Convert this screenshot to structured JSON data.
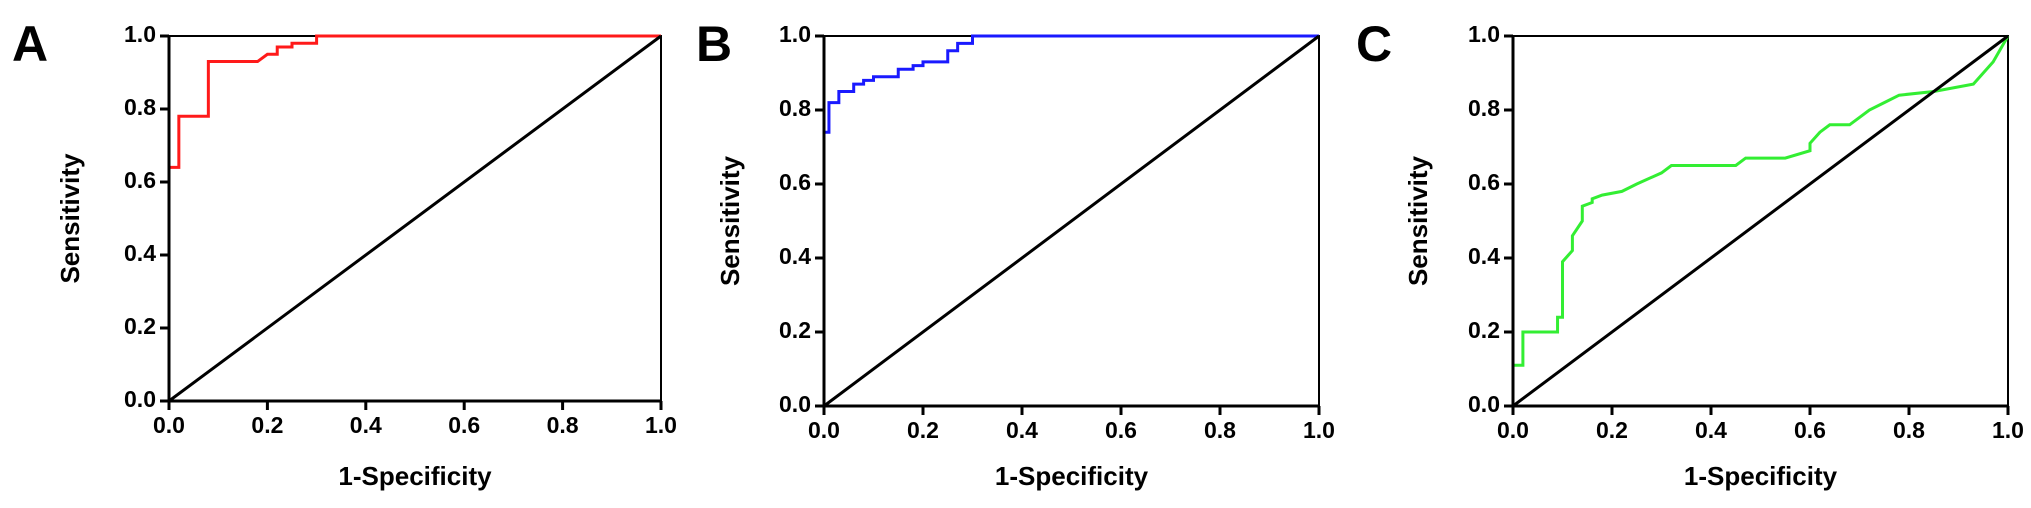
{
  "chart_data": [
    {
      "type": "line",
      "panel_label": "A",
      "xlabel": "1-Specificity",
      "ylabel": "Sensitivity",
      "xlim": [
        0,
        1
      ],
      "ylim": [
        0,
        1
      ],
      "xticks": [
        {
          "value": 0,
          "label": "0.0"
        },
        0.2,
        0.4,
        0.6,
        0.8,
        {
          "value": 1,
          "label": "1.0"
        }
      ],
      "yticks": [
        {
          "value": 0,
          "label": "0.0"
        },
        0.2,
        0.4,
        0.6,
        0.8,
        {
          "value": 1,
          "label": "1.0"
        }
      ],
      "series": [
        {
          "color": "#ff1a1a",
          "x": [
            0,
            0,
            0.02,
            0.02,
            0.08,
            0.08,
            0.18,
            0.2,
            0.22,
            0.22,
            0.25,
            0.25,
            0.3,
            0.3,
            1
          ],
          "values": [
            0,
            0.64,
            0.64,
            0.78,
            0.78,
            0.93,
            0.93,
            0.95,
            0.95,
            0.97,
            0.97,
            0.98,
            0.98,
            1,
            1
          ]
        },
        {
          "color": "#000000",
          "x": [
            0,
            1
          ],
          "values": [
            0,
            1
          ]
        }
      ]
    },
    {
      "type": "line",
      "panel_label": "B",
      "xlabel": "1-Specificity",
      "ylabel": "Sensitivity",
      "xlim": [
        0,
        1
      ],
      "ylim": [
        0,
        1
      ],
      "xticks": [
        {
          "value": 0,
          "label": "0.0"
        },
        0.2,
        0.4,
        0.6,
        0.8,
        {
          "value": 1,
          "label": "1.0"
        }
      ],
      "yticks": [
        {
          "value": 0,
          "label": "0.0"
        },
        0.2,
        0.4,
        0.6,
        0.8,
        {
          "value": 1,
          "label": "1.0"
        }
      ],
      "series": [
        {
          "color": "#1a1aff",
          "x": [
            0,
            0,
            0.01,
            0.01,
            0.03,
            0.03,
            0.06,
            0.06,
            0.08,
            0.08,
            0.1,
            0.1,
            0.15,
            0.15,
            0.18,
            0.18,
            0.2,
            0.2,
            0.25,
            0.25,
            0.27,
            0.27,
            0.3,
            0.3,
            1
          ],
          "values": [
            0,
            0.74,
            0.74,
            0.82,
            0.82,
            0.85,
            0.85,
            0.87,
            0.87,
            0.88,
            0.88,
            0.89,
            0.89,
            0.91,
            0.91,
            0.92,
            0.92,
            0.93,
            0.93,
            0.96,
            0.96,
            0.98,
            0.98,
            1,
            1
          ]
        },
        {
          "color": "#000000",
          "x": [
            0,
            1
          ],
          "values": [
            0,
            1
          ]
        }
      ]
    },
    {
      "type": "line",
      "panel_label": "C",
      "xlabel": "1-Specificity",
      "ylabel": "Sensitivity",
      "xlim": [
        0,
        1
      ],
      "ylim": [
        0,
        1
      ],
      "xticks": [
        {
          "value": 0,
          "label": "0.0"
        },
        0.2,
        0.4,
        0.6,
        0.8,
        {
          "value": 1,
          "label": "1.0"
        }
      ],
      "yticks": [
        {
          "value": 0,
          "label": "0.0"
        },
        0.2,
        0.4,
        0.6,
        0.8,
        {
          "value": 1,
          "label": "1.0"
        }
      ],
      "series": [
        {
          "color": "#33ee33",
          "x": [
            0,
            0,
            0.02,
            0.02,
            0.09,
            0.09,
            0.1,
            0.1,
            0.12,
            0.12,
            0.14,
            0.14,
            0.16,
            0.16,
            0.18,
            0.22,
            0.25,
            0.3,
            0.32,
            0.45,
            0.47,
            0.55,
            0.6,
            0.6,
            0.62,
            0.64,
            0.68,
            0.7,
            0.72,
            0.75,
            0.78,
            0.85,
            0.93,
            0.93,
            0.95,
            0.97,
            1
          ],
          "values": [
            0,
            0.11,
            0.11,
            0.2,
            0.2,
            0.24,
            0.24,
            0.39,
            0.42,
            0.46,
            0.5,
            0.54,
            0.55,
            0.56,
            0.57,
            0.58,
            0.6,
            0.63,
            0.65,
            0.65,
            0.67,
            0.67,
            0.69,
            0.71,
            0.74,
            0.76,
            0.76,
            0.78,
            0.8,
            0.82,
            0.84,
            0.85,
            0.87,
            0.87,
            0.9,
            0.93,
            1
          ]
        },
        {
          "color": "#000000",
          "x": [
            0,
            1
          ],
          "values": [
            0,
            1
          ]
        }
      ]
    }
  ]
}
